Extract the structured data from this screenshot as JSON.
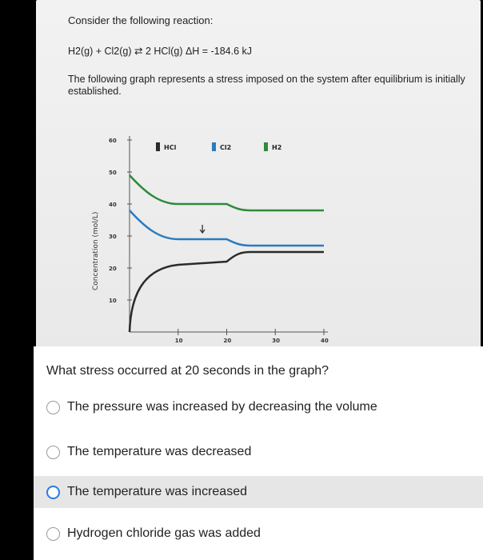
{
  "problem": {
    "line1": "Consider the following reaction:",
    "reaction": "H2(g) + Cl2(g) ⇄ 2 HCl(g)     ΔH = -184.6 kJ",
    "description": "The following graph represents a stress imposed on the system after equilibrium is initially established."
  },
  "question": {
    "text": "What stress occurred at 20 seconds in the graph?",
    "options": [
      "The pressure was increased by decreasing the volume",
      "The temperature was decreased",
      "The temperature was increased",
      "Hydrogen chloride gas was added"
    ],
    "highlighted_index": 2
  },
  "colors": {
    "hcl": "#2b2b2b",
    "cl2": "#2c7bbf",
    "h2": "#2f8a3a"
  },
  "chart_data": {
    "type": "line",
    "ylabel": "Concentration (mol/L)",
    "yticks": [
      "10",
      "20",
      "30",
      "40",
      "50",
      "60"
    ],
    "xticks": [
      "10",
      "20",
      "30",
      "40"
    ],
    "ylim": [
      0,
      60
    ],
    "xlim": [
      0,
      40
    ],
    "legend": [
      "HCl",
      "Cl2",
      "H2"
    ],
    "series": [
      {
        "name": "H2",
        "x": [
          0,
          3,
          10,
          20,
          25,
          40
        ],
        "y": [
          49,
          44,
          40,
          40,
          38,
          38
        ]
      },
      {
        "name": "Cl2",
        "x": [
          0,
          3,
          10,
          20,
          25,
          40
        ],
        "y": [
          38,
          33,
          29,
          29,
          27,
          27
        ]
      },
      {
        "name": "HCl",
        "x": [
          0,
          1,
          4,
          10,
          20,
          25,
          40
        ],
        "y": [
          0,
          9,
          17,
          21,
          22,
          25,
          25
        ]
      }
    ],
    "annotations": [
      "arrow near x=15 pointing at Cl2 curve"
    ]
  }
}
